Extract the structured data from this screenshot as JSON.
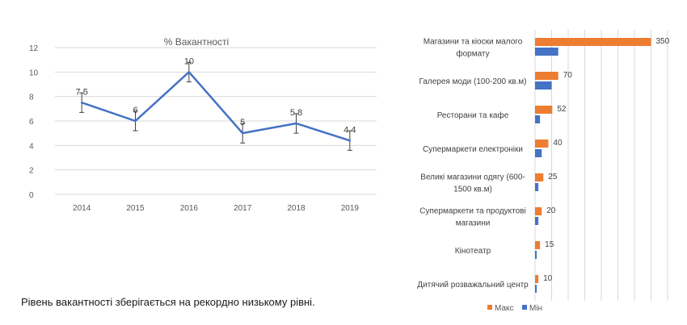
{
  "chart_data": [
    {
      "type": "line",
      "title": "% Вакантності",
      "x": [
        "2014",
        "2015",
        "2016",
        "2017",
        "2018",
        "2019"
      ],
      "series": [
        {
          "values": [
            7.5,
            6,
            10,
            5,
            5.8,
            4.4
          ],
          "labels": [
            "7.5",
            "6",
            "10",
            "5",
            "5.8",
            "4.4"
          ],
          "error": [
            0.8,
            0.8,
            0.8,
            0.8,
            0.8,
            0.8
          ]
        }
      ],
      "ylim": [
        0,
        12
      ],
      "yticks": [
        "0",
        "2",
        "4",
        "6",
        "8",
        "10",
        "12"
      ],
      "grid": true,
      "color": "#4472C4"
    },
    {
      "type": "bar",
      "orientation": "horizontal",
      "categories": [
        [
          "Магазини та кіоски малого",
          "формату"
        ],
        [
          "Галерея моди (100-200 кв.м)"
        ],
        [
          "Ресторани та кафе"
        ],
        [
          "Супермаркети електроніки"
        ],
        [
          "Великі магазини одягу (600-",
          "1500 кв.м)"
        ],
        [
          "Супермаркети та продуктові",
          "магазини"
        ],
        [
          "Кінотеатр"
        ],
        [
          "Дитячий розважальний центр"
        ]
      ],
      "series": [
        {
          "name": "Макс",
          "color": "#ED7D31",
          "values": [
            350,
            70,
            52,
            40,
            25,
            20,
            15,
            10
          ]
        },
        {
          "name": "Мін",
          "color": "#4472C4",
          "values": [
            70,
            50,
            15,
            20,
            10,
            10,
            5,
            5
          ]
        }
      ],
      "value_labels": [
        "350",
        "70",
        "52",
        "40",
        "25",
        "20",
        "15",
        "10"
      ],
      "xlim": [
        0,
        400
      ],
      "grid": true,
      "legend": "bottom"
    }
  ],
  "caption": "Рівень вакантності зберігається на рекордно низькому рівні."
}
